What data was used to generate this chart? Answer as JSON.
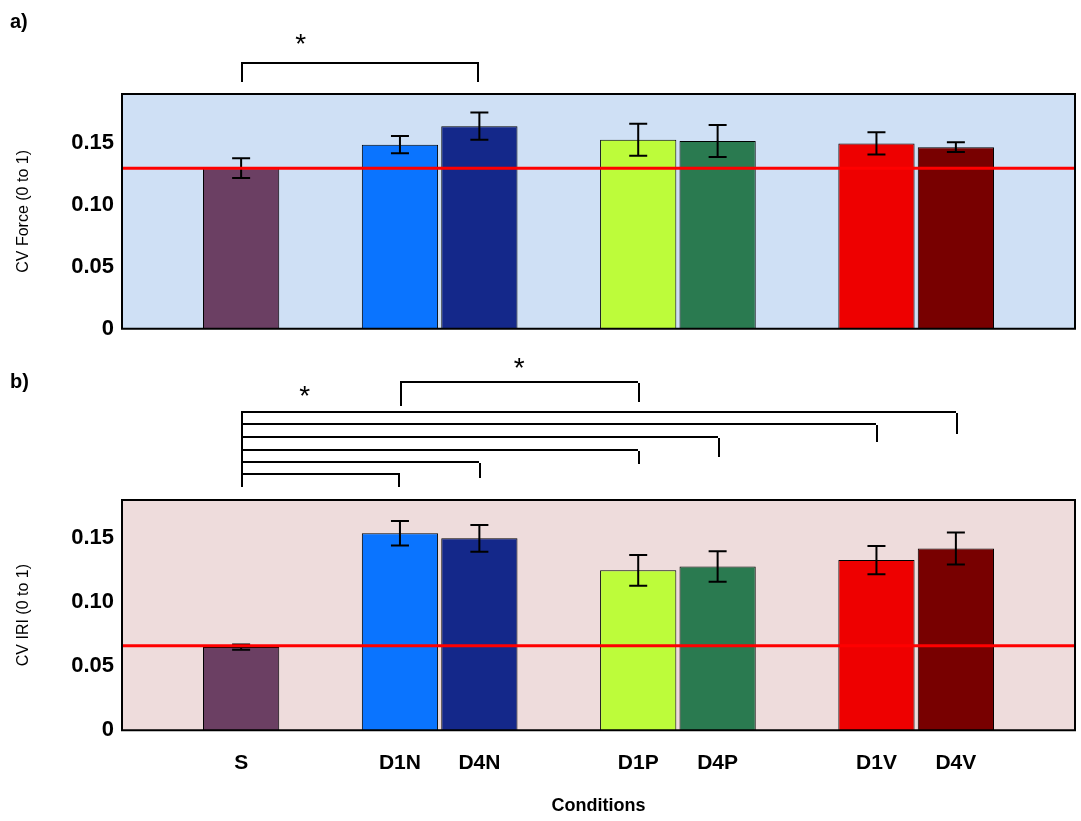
{
  "chart_data": [
    {
      "type": "bar",
      "title": "a)",
      "ylabel": "CV Force (0 to 1)",
      "categories": [
        null,
        null,
        null,
        null,
        null,
        null,
        null,
        null,
        null,
        null,
        null,
        null
      ],
      "values": [
        null,
        0.13,
        null,
        0.149,
        0.164,
        null,
        0.153,
        0.152,
        null,
        0.15,
        0.147,
        null
      ],
      "errors": [
        null,
        0.008,
        null,
        0.007,
        0.011,
        null,
        0.013,
        0.013,
        null,
        0.009,
        0.004,
        null
      ],
      "colors": [
        null,
        "#6b3f63",
        null,
        "#0a74ff",
        "#14288a",
        null,
        "#bdfc3a",
        "#2a7a50",
        null,
        "#ee0000",
        "#780000",
        null
      ],
      "ylim": [
        0,
        0.19
      ],
      "yticks": [
        0,
        0.05,
        {
          "value": 0.1,
          "label": "0.10"
        },
        0.15
      ],
      "tick_labels": "y",
      "grid": false,
      "legend": false,
      "ref_lines": [
        {
          "axis": "y",
          "value": 0.13,
          "color": "#ff0000"
        }
      ],
      "annotations": [
        "*"
      ]
    },
    {
      "type": "bar",
      "title": "b)",
      "ylabel": "CV IRI (0 to 1)",
      "xlabel": "Conditions",
      "categories": [
        null,
        "S",
        null,
        "D1N",
        "D4N",
        null,
        "D1P",
        "D4P",
        null,
        "D1V",
        "D4V",
        null
      ],
      "values": [
        null,
        0.065,
        null,
        0.154,
        0.15,
        null,
        0.125,
        0.128,
        null,
        0.133,
        0.142,
        null
      ],
      "errors": [
        null,
        0.002,
        null,
        0.0095,
        0.0105,
        null,
        0.012,
        0.012,
        null,
        0.011,
        0.0125,
        null
      ],
      "colors": [
        null,
        "#6b3f63",
        null,
        "#0a74ff",
        "#14288a",
        null,
        "#bdfc3a",
        "#2a7a50",
        null,
        "#ee0000",
        "#780000",
        null
      ],
      "ylim": [
        0,
        0.18
      ],
      "yticks": [
        0,
        0.05,
        {
          "value": 0.1,
          "label": "0.10"
        },
        0.15
      ],
      "grid": false,
      "legend": false,
      "ref_lines": [
        {
          "axis": "y",
          "value": 0.066,
          "color": "#ff0000"
        }
      ],
      "annotations": [
        "*",
        "*"
      ]
    }
  ]
}
